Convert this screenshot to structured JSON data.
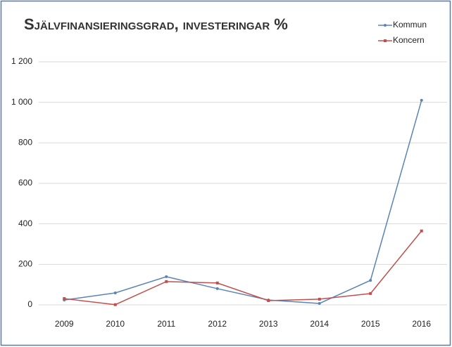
{
  "chart_data": {
    "type": "line",
    "title": "Självfinansieringsgrad, investeringar %",
    "categories": [
      "2009",
      "2010",
      "2011",
      "2012",
      "2013",
      "2014",
      "2015",
      "2016"
    ],
    "series": [
      {
        "name": "Kommun",
        "color": "#5b83b8",
        "values": [
          24,
          59,
          139,
          80,
          24,
          7,
          121,
          1010
        ]
      },
      {
        "name": "Koncern",
        "color": "#c0504d",
        "values": [
          31,
          1,
          115,
          108,
          21,
          28,
          56,
          365
        ]
      }
    ],
    "ylim": [
      0,
      1200
    ],
    "yticks": [
      0,
      200,
      400,
      600,
      800,
      {
        "value": 1000,
        "label": "1 000"
      },
      {
        "value": 1200,
        "label": "1 200"
      }
    ],
    "grid": true,
    "legend": "top-right"
  }
}
